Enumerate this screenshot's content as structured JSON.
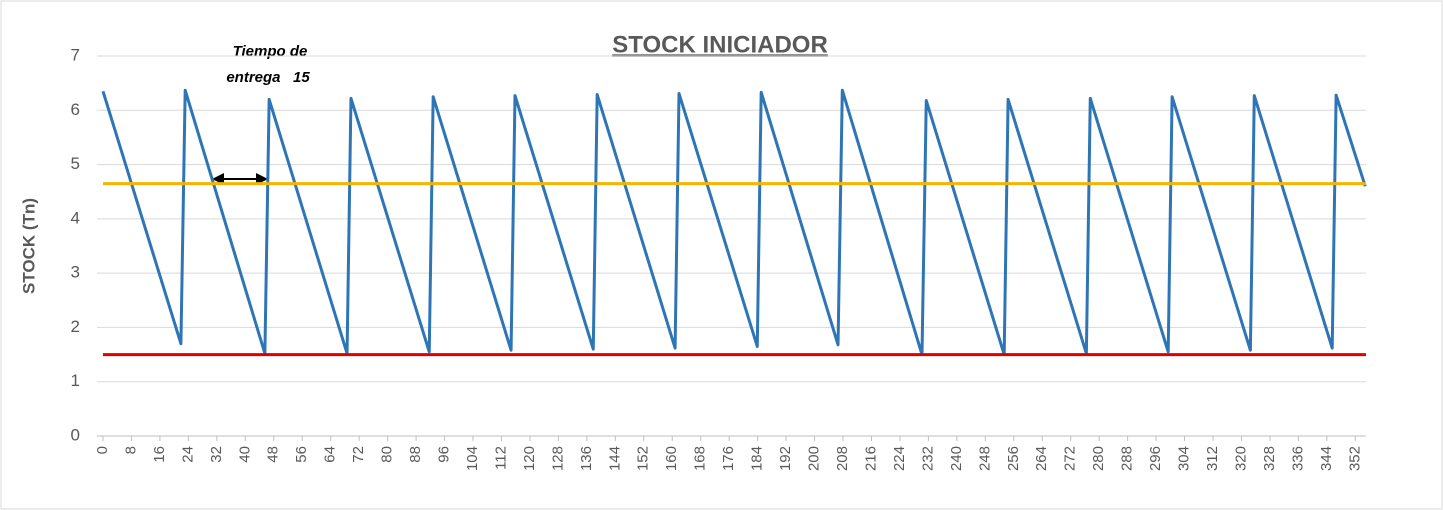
{
  "chart_data": {
    "type": "line",
    "title": "STOCK  INICIADOR",
    "y_label": "STOCK (Tn)",
    "annotation": [
      "Tiempo de",
      "entrega   15"
    ],
    "xlim": [
      0,
      355
    ],
    "ylim": [
      0,
      7
    ],
    "xticks": [
      0,
      8,
      16,
      24,
      32,
      40,
      48,
      56,
      64,
      72,
      80,
      88,
      96,
      104,
      112,
      120,
      128,
      136,
      144,
      152,
      160,
      168,
      176,
      184,
      192,
      200,
      208,
      216,
      224,
      232,
      240,
      248,
      256,
      264,
      272,
      280,
      288,
      296,
      304,
      312,
      320,
      328,
      336,
      344,
      352
    ],
    "yticks": [
      0,
      1,
      2,
      3,
      4,
      5,
      6,
      7
    ],
    "grid": true,
    "series": [
      {
        "color": "#2e75b6",
        "x": [
          0,
          21.9,
          23.1,
          45.5,
          46.7,
          68.6,
          69.7,
          91.7,
          92.8,
          114.7,
          115.8,
          137.8,
          138.9,
          160.8,
          161.9,
          183.9,
          185,
          206.6,
          207.8,
          230.2,
          231.4,
          253.3,
          254.4,
          276.4,
          277.5,
          299.4,
          300.5,
          322.5,
          323.6,
          345.5,
          346.6,
          354.8
        ],
        "values": [
          6.35,
          1.7,
          6.37,
          1.52,
          6.2,
          1.52,
          6.22,
          1.55,
          6.25,
          1.58,
          6.27,
          1.6,
          6.29,
          1.62,
          6.31,
          1.65,
          6.33,
          1.68,
          6.37,
          1.5,
          6.18,
          1.5,
          6.2,
          1.52,
          6.22,
          1.55,
          6.25,
          1.58,
          6.27,
          1.62,
          6.28,
          4.6
        ]
      },
      {
        "color": "#f4b400",
        "x": [
          0,
          355
        ],
        "values": [
          4.65,
          4.65
        ]
      },
      {
        "color": "#e00000",
        "x": [
          0,
          355
        ],
        "values": [
          1.5,
          1.5
        ]
      }
    ]
  }
}
